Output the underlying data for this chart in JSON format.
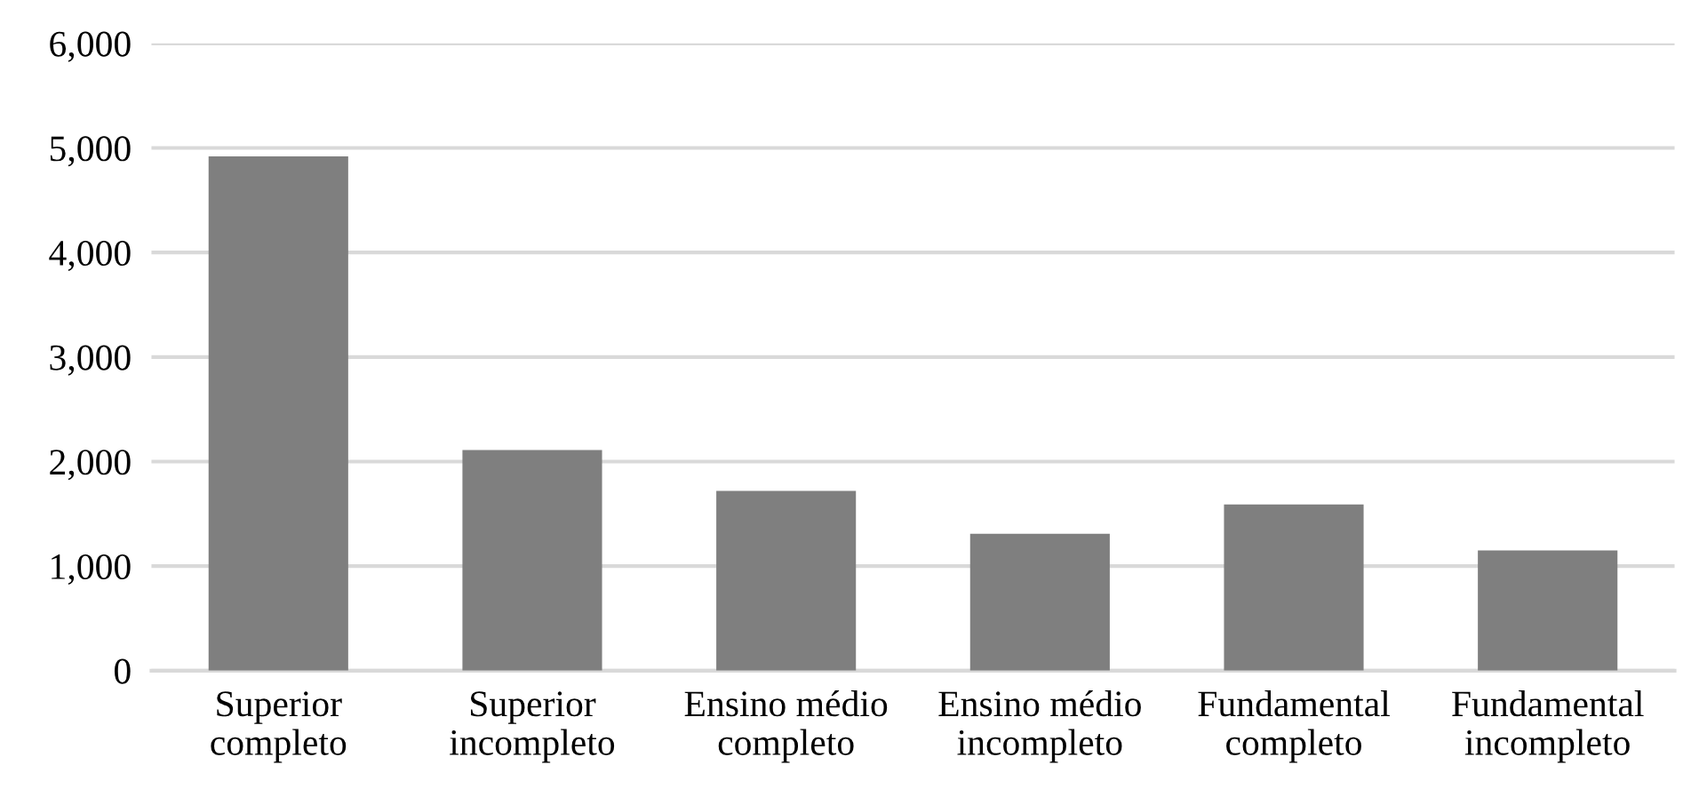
{
  "chart_data": {
    "type": "bar",
    "categories": [
      "Superior\ncompleto",
      "Superior\nincompleto",
      "Ensino médio\ncompleto",
      "Ensino médio\nincompleto",
      "Fundamental\ncompleto",
      "Fundamental\nincompleto"
    ],
    "values": [
      4920,
      2110,
      1720,
      1310,
      1590,
      1150
    ],
    "color": "#7f7f7f",
    "ylim": [
      0,
      6000
    ],
    "yticks": [
      {
        "value": 0,
        "label": "0"
      },
      {
        "value": 1000,
        "label": "1,000"
      },
      {
        "value": 2000,
        "label": "2,000"
      },
      {
        "value": 3000,
        "label": "3,000"
      },
      {
        "value": 4000,
        "label": "4,000"
      },
      {
        "value": 5000,
        "label": "5,000"
      },
      {
        "value": 6000,
        "label": "6,000"
      }
    ],
    "grid": "y",
    "legend": false
  }
}
